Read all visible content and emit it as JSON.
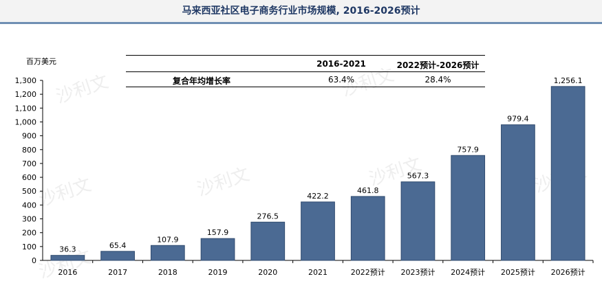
{
  "title": "马来西亚社区电子商务行业市场规模, 2016-2026预计",
  "watermark": "沙利文",
  "colors": {
    "bar": "#4b6a93",
    "bar_stroke": "#2f4a6e",
    "title": "#1f3864",
    "rule": "#6f8fb3"
  },
  "growth_table": {
    "headers": [
      "2016-2021",
      "2022预计-2026预计"
    ],
    "row_label": "复合年均增长率",
    "values": [
      "63.4%",
      "28.4%"
    ]
  },
  "chart_data": {
    "type": "bar",
    "title": "马来西亚社区电子商务行业市场规模, 2016-2026预计",
    "ylabel": "百万美元",
    "xlabel": "",
    "categories": [
      "2016",
      "2017",
      "2018",
      "2019",
      "2020",
      "2021",
      "2022预计",
      "2023预计",
      "2024预计",
      "2025预计",
      "2026预计"
    ],
    "values": [
      36.3,
      65.4,
      107.9,
      157.9,
      276.5,
      422.2,
      461.8,
      567.3,
      757.9,
      979.4,
      1256.1
    ],
    "value_labels": [
      "36.3",
      "65.4",
      "107.9",
      "157.9",
      "276.5",
      "422.2",
      "461.8",
      "567.3",
      "757.9",
      "979.4",
      "1,256.1"
    ],
    "ylim": [
      0,
      1300
    ],
    "yticks": [
      0,
      100,
      200,
      300,
      400,
      500,
      600,
      700,
      800,
      900,
      1000,
      1100,
      1200,
      1300
    ],
    "ytick_labels": [
      "0",
      "100",
      "200",
      "300",
      "400",
      "500",
      "600",
      "700",
      "800",
      "900",
      "1,000",
      "1,100",
      "1,200",
      "1,300"
    ],
    "grid": false,
    "legend": "none"
  }
}
